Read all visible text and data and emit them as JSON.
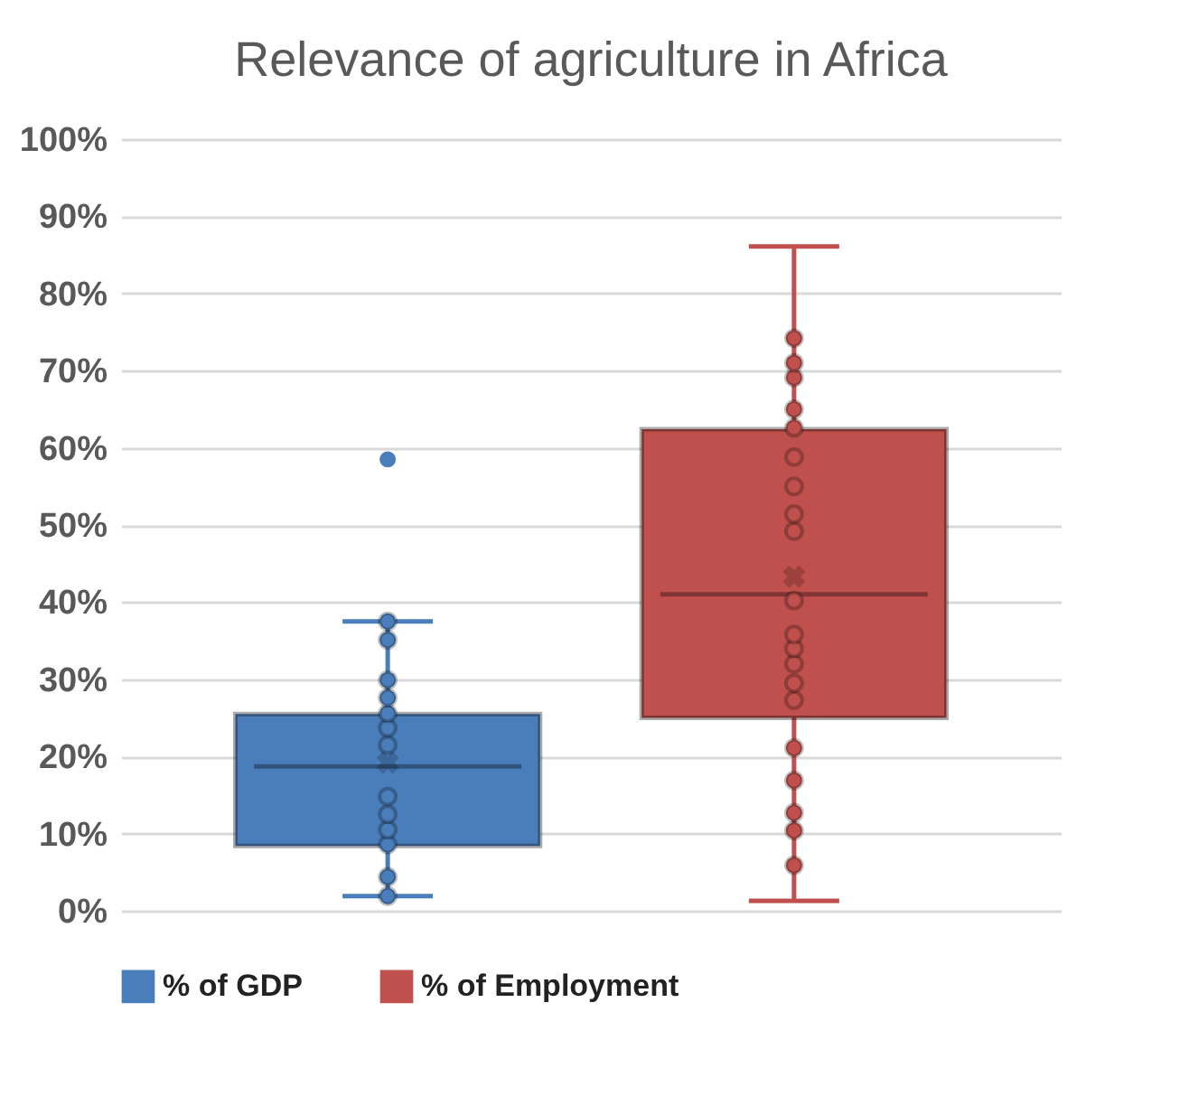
{
  "chart_data": {
    "type": "box",
    "title": "Relevance of agriculture in Africa",
    "categories": [
      null
    ],
    "ylim": [
      0,
      100
    ],
    "yticks": [
      {
        "value": 0,
        "label": "0%"
      },
      {
        "value": 10,
        "label": "10%"
      },
      {
        "value": 20,
        "label": "20%"
      },
      {
        "value": 30,
        "label": "30%"
      },
      {
        "value": 40,
        "label": "40%"
      },
      {
        "value": 50,
        "label": "50%"
      },
      {
        "value": 60,
        "label": "60%"
      },
      {
        "value": 70,
        "label": "70%"
      },
      {
        "value": 80,
        "label": "80%"
      },
      {
        "value": 90,
        "label": "90%"
      },
      {
        "value": 100,
        "label": "100%"
      }
    ],
    "grid": "y",
    "legend": "bottom",
    "marker": "circle",
    "series": [
      {
        "name": "% of GDP",
        "color": "#4a7ebb",
        "boxes": [
          {
            "low": 1.9,
            "q1": 8.4,
            "median": 18.7,
            "q3": 25.5,
            "high": 37.5,
            "mean": 19.2,
            "outliers": [
              58.5
            ]
          }
        ]
      },
      {
        "name": "% of Employment",
        "color": "#c0504d",
        "boxes": [
          {
            "low": 1.3,
            "q1": 25,
            "median": 41,
            "q3": 62.4,
            "high": 86.1,
            "mean": 43.3
          }
        ]
      },
      {
        "type": "scatter",
        "color": "#4a7ebb",
        "x": [
          null,
          null,
          null,
          null,
          null,
          null,
          null,
          null,
          null,
          null,
          null,
          null,
          null
        ],
        "values": [
          1.9,
          4.4,
          8.6,
          10.5,
          12.5,
          14.8,
          21.5,
          23.7,
          25.6,
          27.6,
          29.9,
          35.1,
          37.5
        ]
      },
      {
        "type": "scatter",
        "color": "#c0504d",
        "x": [
          null,
          null,
          null,
          null,
          null,
          null,
          null,
          null,
          null,
          null,
          null,
          null,
          null,
          null,
          null,
          null,
          null,
          null,
          null,
          null
        ],
        "values": [
          5.9,
          10.4,
          12.7,
          16.9,
          21.1,
          27.3,
          29.5,
          32,
          34,
          35.8,
          40.2,
          49.2,
          51.4,
          55,
          58.8,
          62.6,
          65,
          69.1,
          71,
          74.2
        ]
      }
    ]
  }
}
